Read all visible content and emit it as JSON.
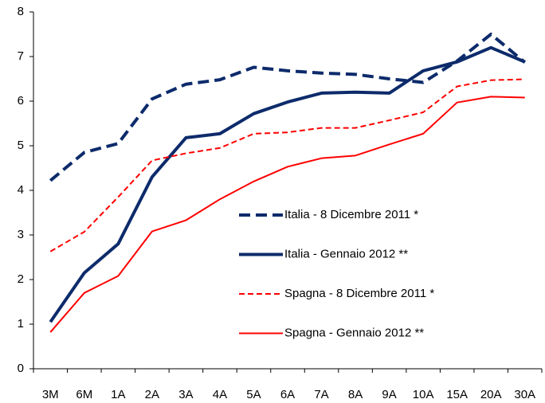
{
  "chart_data": {
    "type": "line",
    "categories": [
      "3M",
      "6M",
      "1A",
      "2A",
      "3A",
      "4A",
      "5A",
      "6A",
      "7A",
      "8A",
      "9A",
      "10A",
      "15A",
      "20A",
      "30A"
    ],
    "series": [
      {
        "name": "Italia - 8 Dicembre 2011 *",
        "color": "#0d2b6b",
        "dash": "dashed",
        "width": 4,
        "values": [
          4.22,
          4.85,
          5.05,
          6.05,
          6.38,
          6.48,
          6.76,
          6.68,
          6.63,
          6.6,
          6.5,
          6.42,
          6.9,
          7.5,
          6.87
        ]
      },
      {
        "name": "Italia - Gennaio 2012 **",
        "color": "#0d2b6b",
        "dash": "solid",
        "width": 4,
        "values": [
          1.05,
          2.15,
          2.8,
          4.3,
          5.18,
          5.27,
          5.72,
          5.98,
          6.18,
          6.2,
          6.18,
          6.68,
          6.88,
          7.2,
          6.88
        ]
      },
      {
        "name": "Spagna - 8 Dicembre 2011 *",
        "color": "#ff0000",
        "dash": "dashed",
        "width": 2,
        "values": [
          2.63,
          3.07,
          3.85,
          4.67,
          4.83,
          4.95,
          5.27,
          5.3,
          5.4,
          5.4,
          5.57,
          5.75,
          6.33,
          6.47,
          6.49
        ]
      },
      {
        "name": "Spagna - Gennaio 2012 **",
        "color": "#ff0000",
        "dash": "solid",
        "width": 2,
        "values": [
          0.82,
          1.7,
          2.08,
          3.08,
          3.33,
          3.8,
          4.2,
          4.53,
          4.72,
          4.78,
          5.03,
          5.27,
          5.97,
          6.1,
          6.08
        ]
      }
    ],
    "ylim": [
      0,
      8
    ],
    "yticks": [
      0,
      1,
      2,
      3,
      4,
      5,
      6,
      7,
      8
    ],
    "grid": false,
    "legend": "right"
  }
}
